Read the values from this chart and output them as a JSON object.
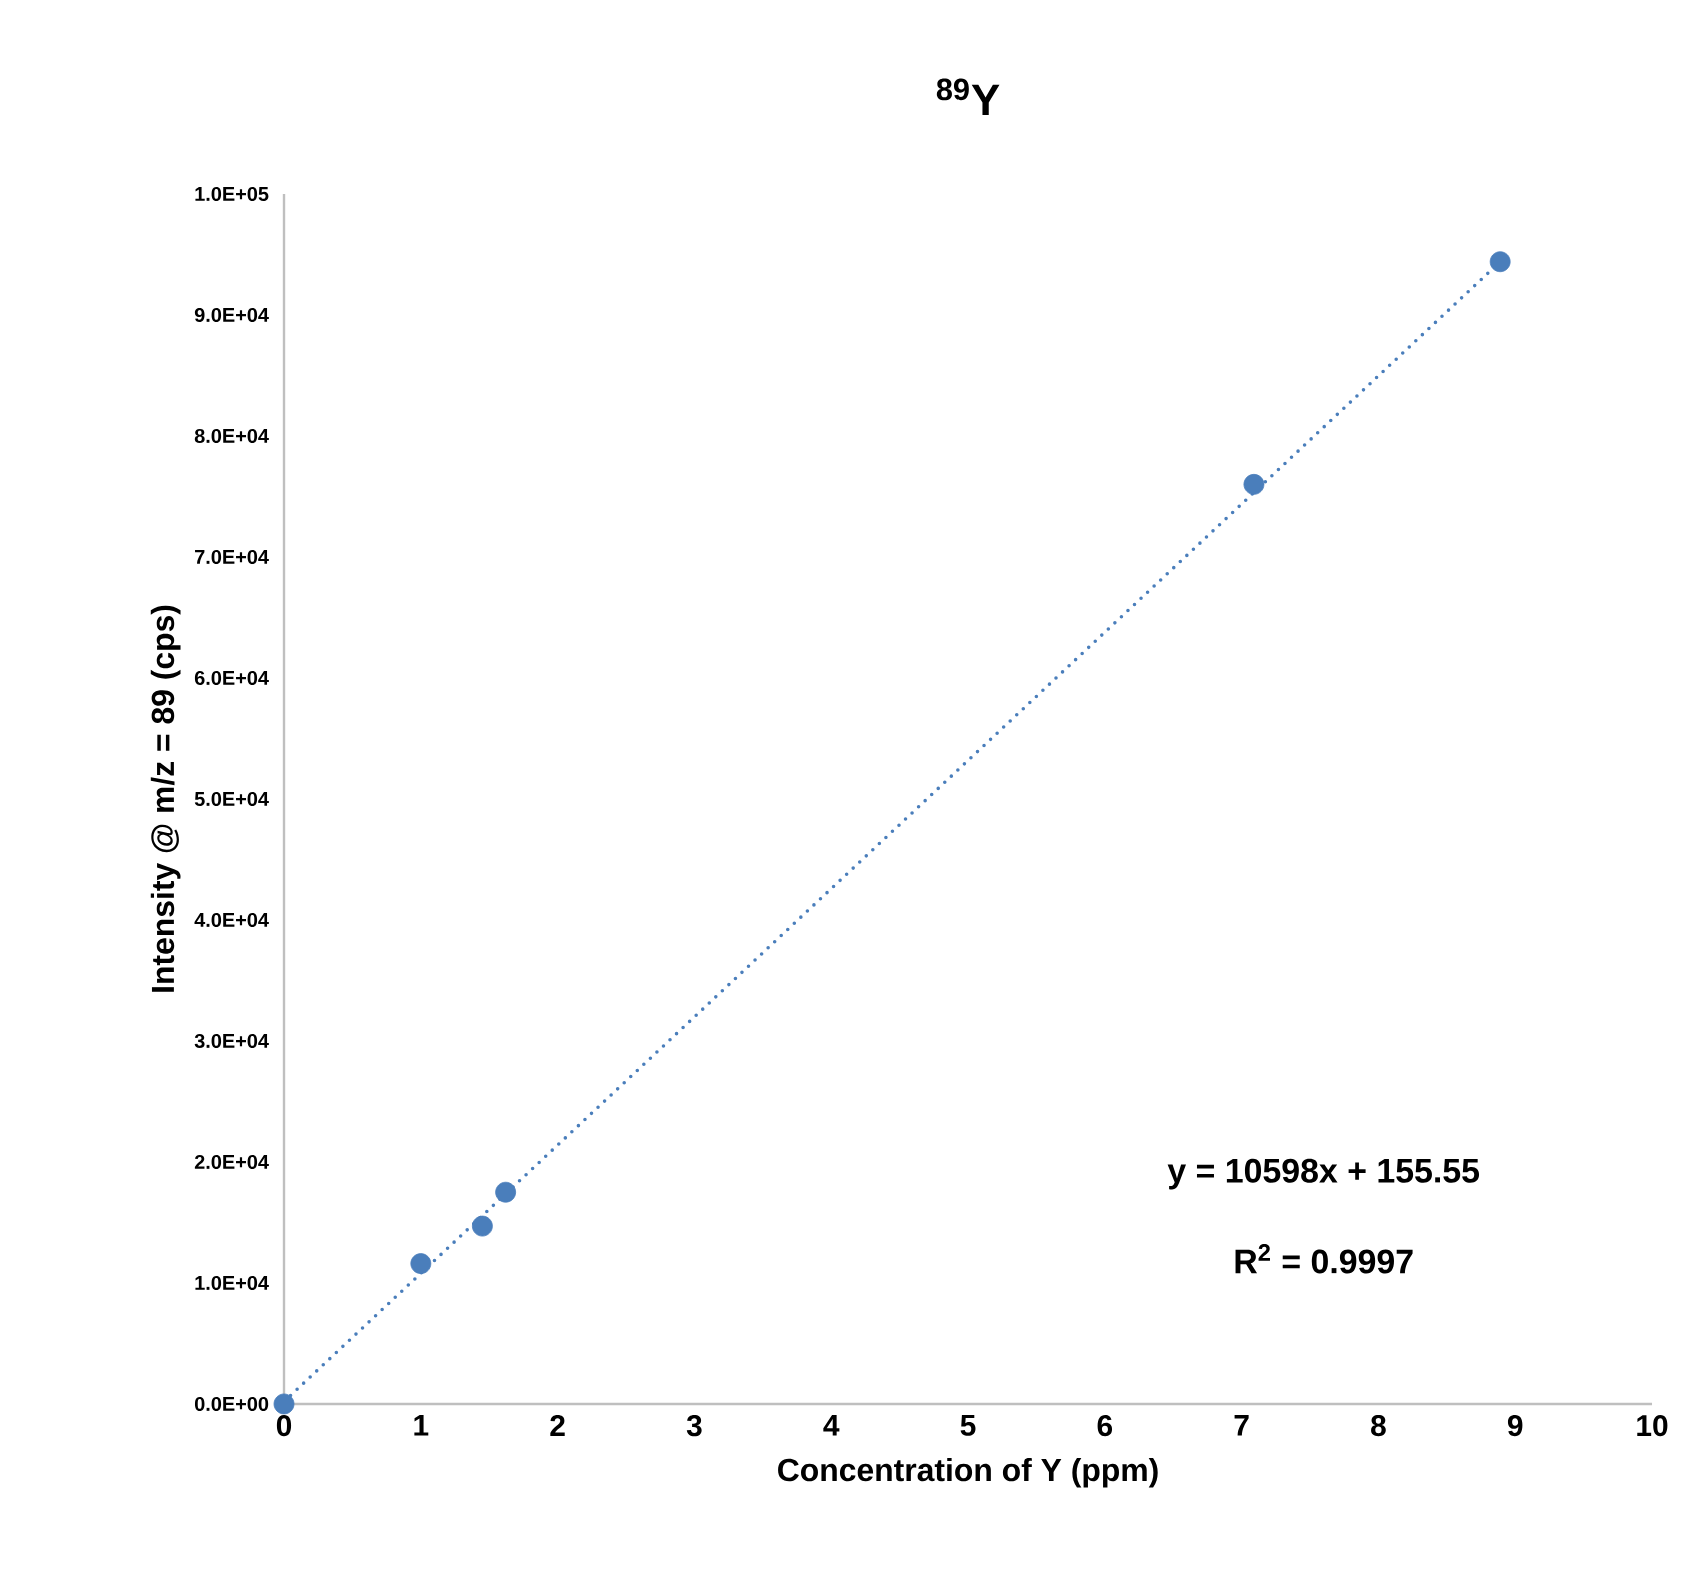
{
  "chart_data": {
    "type": "scatter",
    "title": "$^{89}$Y",
    "xlabel": "Concentration of Y (ppm)",
    "ylabel": "Intensity @ m/z = 89 (cps)",
    "xlim": [
      0,
      10
    ],
    "xticks": [
      0,
      1,
      2,
      3,
      4,
      5,
      6,
      7,
      8,
      9,
      10
    ],
    "ylim": [
      0,
      100000
    ],
    "yticks": [
      {
        "value": 0,
        "label": "0.0E+00"
      },
      {
        "value": 10000,
        "label": "1.0E+04"
      },
      {
        "value": 20000,
        "label": "2.0E+04"
      },
      {
        "value": 30000,
        "label": "3.0E+04"
      },
      {
        "value": 40000,
        "label": "4.0E+04"
      },
      {
        "value": 50000,
        "label": "5.0E+04"
      },
      {
        "value": 60000,
        "label": "6.0E+04"
      },
      {
        "value": 70000,
        "label": "7.0E+04"
      },
      {
        "value": 80000,
        "label": "8.0E+04"
      },
      {
        "value": 90000,
        "label": "9.0E+04"
      },
      {
        "value": 100000,
        "label": "1.0E+05"
      }
    ],
    "grid": false,
    "series": [
      {
        "type": "scatter",
        "color": "#4a7ebb",
        "marker": "circle",
        "x": [
          0,
          1.0,
          1.45,
          1.62,
          7.09,
          8.89
        ],
        "values": [
          0,
          11600,
          14700,
          17500,
          76000,
          94400
        ]
      },
      {
        "type": "line",
        "color": "#4a7ebb",
        "marker": "none",
        "line_style": "dotted",
        "x": [
          0,
          8.89
        ],
        "values": [
          200,
          94400
        ]
      }
    ],
    "annotations": [
      "y = 10598x + 155.55",
      "R$^{2}$ = 0.9997"
    ]
  }
}
